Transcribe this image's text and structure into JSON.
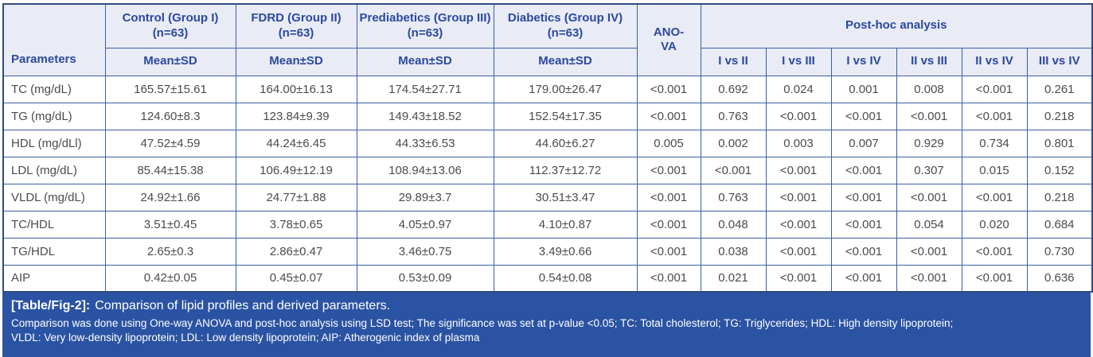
{
  "colors": {
    "header_bg": "#e9ebf5",
    "header_text": "#2b4a9c",
    "inner_border": "#3e5ea7",
    "outer_border": "#2f4b7e",
    "body_text": "#4b4b4b",
    "body_bg": "#ffffff",
    "caption_bg": "#2b53a3",
    "caption_text": "#ffffff"
  },
  "table": {
    "header": {
      "parameters_label": "Parameters",
      "groups": [
        {
          "title": "Control (Group I) (n=63)",
          "sub": "Mean±SD"
        },
        {
          "title": "FDRD (Group II) (n=63)",
          "sub": "Mean±SD"
        },
        {
          "title": "Prediabetics (Group III) (n=63)",
          "sub": "Mean±SD"
        },
        {
          "title": "Diabetics (Group IV) (n=63)",
          "sub": "Mean±SD"
        }
      ],
      "anova_line1": "ANO-",
      "anova_line2": "VA",
      "posthoc_title": "Post-hoc analysis",
      "posthoc_cols": [
        "I vs II",
        "I vs III",
        "I vs IV",
        "II vs III",
        "II vs IV",
        "III vs IV"
      ]
    },
    "rows": [
      {
        "parameter": "TC (mg/dL)",
        "values": [
          "165.57±15.61",
          "164.00±16.13",
          "174.54±27.71",
          "179.00±26.47"
        ],
        "anova": "<0.001",
        "posthoc": [
          "0.692",
          "0.024",
          "0.001",
          "0.008",
          "<0.001",
          "0.261"
        ]
      },
      {
        "parameter": "TG (mg/dL)",
        "values": [
          "124.60±8.3",
          "123.84±9.39",
          "149.43±18.52",
          "152.54±17.35"
        ],
        "anova": "<0.001",
        "posthoc": [
          "0.763",
          "<0.001",
          "<0.001",
          "<0.001",
          "<0.001",
          "0.218"
        ]
      },
      {
        "parameter": "HDL (mg/dLl)",
        "values": [
          "47.52±4.59",
          "44.24±6.45",
          "44.33±6.53",
          "44.60±6.27"
        ],
        "anova": "0.005",
        "posthoc": [
          "0.002",
          "0.003",
          "0.007",
          "0.929",
          "0.734",
          "0.801"
        ]
      },
      {
        "parameter": "LDL (mg/dL)",
        "values": [
          "85.44±15.38",
          "106.49±12.19",
          "108.94±13.06",
          "112.37±12.72"
        ],
        "anova": "<0.001",
        "posthoc": [
          "<0.001",
          "<0.001",
          "<0.001",
          "0.307",
          "0.015",
          "0.152"
        ]
      },
      {
        "parameter": "VLDL (mg/dL)",
        "values": [
          "24.92±1.66",
          "24.77±1.88",
          "29.89±3.7",
          "30.51±3.47"
        ],
        "anova": "<0.001",
        "posthoc": [
          "0.763",
          "<0.001",
          "<0.001",
          "<0.001",
          "<0.001",
          "0.218"
        ]
      },
      {
        "parameter": "TC/HDL",
        "values": [
          "3.51±0.45",
          "3.78±0.65",
          "4.05±0.97",
          "4.10±0.87"
        ],
        "anova": "<0.001",
        "posthoc": [
          "0.048",
          "<0.001",
          "<0.001",
          "0.054",
          "0.020",
          "0.684"
        ]
      },
      {
        "parameter": "TG/HDL",
        "values": [
          "2.65±0.3",
          "2.86±0.47",
          "3.46±0.75",
          "3.49±0.66"
        ],
        "anova": "<0.001",
        "posthoc": [
          "0.038",
          "<0.001",
          "<0.001",
          "<0.001",
          "<0.001",
          "0.730"
        ]
      },
      {
        "parameter": "AIP",
        "values": [
          "0.42±0.05",
          "0.45±0.07",
          "0.53±0.09",
          "0.54±0.08"
        ],
        "anova": "<0.001",
        "posthoc": [
          "0.021",
          "<0.001",
          "<0.001",
          "<0.001",
          "<0.001",
          "0.636"
        ]
      }
    ]
  },
  "caption": {
    "tag": "[Table/Fig-2]:",
    "title": "Comparison of lipid profiles and derived parameters.",
    "note_line1": "Comparison was done using One-way ANOVA and post-hoc analysis using LSD test; The significance was set at p-value <0.05; TC: Total cholesterol; TG: Triglycerides; HDL: High density lipoprotein;",
    "note_line2": "VLDL: Very low-density lipoprotein; LDL: Low density lipoprotein; AIP: Atherogenic index of plasma"
  }
}
